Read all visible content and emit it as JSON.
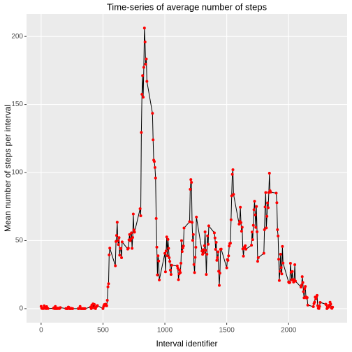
{
  "chart_data": {
    "type": "line",
    "title": "Time-series of average number of steps",
    "x_label": "Interval identifier",
    "y_label": "Mean number of steps per interval",
    "x": [
      0,
      5,
      10,
      15,
      20,
      25,
      30,
      35,
      40,
      45,
      50,
      55,
      100,
      105,
      110,
      115,
      120,
      125,
      130,
      135,
      140,
      145,
      150,
      155,
      200,
      205,
      210,
      215,
      220,
      225,
      230,
      235,
      240,
      245,
      250,
      255,
      300,
      305,
      310,
      315,
      320,
      325,
      330,
      335,
      340,
      345,
      350,
      355,
      400,
      405,
      410,
      415,
      420,
      425,
      430,
      435,
      440,
      445,
      450,
      455,
      500,
      505,
      510,
      515,
      520,
      525,
      530,
      535,
      540,
      545,
      550,
      555,
      600,
      605,
      610,
      615,
      620,
      625,
      630,
      635,
      640,
      645,
      650,
      655,
      700,
      705,
      710,
      715,
      720,
      725,
      730,
      735,
      740,
      745,
      750,
      755,
      800,
      805,
      810,
      815,
      820,
      825,
      830,
      835,
      840,
      845,
      850,
      855,
      900,
      905,
      910,
      915,
      920,
      925,
      930,
      935,
      940,
      945,
      950,
      955,
      1000,
      1005,
      1010,
      1015,
      1020,
      1025,
      1030,
      1035,
      1040,
      1045,
      1050,
      1055,
      1100,
      1105,
      1110,
      1115,
      1120,
      1125,
      1130,
      1135,
      1140,
      1145,
      1150,
      1155,
      1200,
      1205,
      1210,
      1215,
      1220,
      1225,
      1230,
      1235,
      1240,
      1245,
      1250,
      1255,
      1300,
      1305,
      1310,
      1315,
      1320,
      1325,
      1330,
      1335,
      1340,
      1345,
      1350,
      1355,
      1400,
      1405,
      1410,
      1415,
      1420,
      1425,
      1430,
      1435,
      1440,
      1445,
      1450,
      1455,
      1500,
      1505,
      1510,
      1515,
      1520,
      1525,
      1530,
      1535,
      1540,
      1545,
      1550,
      1555,
      1600,
      1605,
      1610,
      1615,
      1620,
      1625,
      1630,
      1635,
      1640,
      1645,
      1650,
      1655,
      1700,
      1705,
      1710,
      1715,
      1720,
      1725,
      1730,
      1735,
      1740,
      1745,
      1750,
      1755,
      1800,
      1805,
      1810,
      1815,
      1820,
      1825,
      1830,
      1835,
      1840,
      1845,
      1850,
      1855,
      1900,
      1905,
      1910,
      1915,
      1920,
      1925,
      1930,
      1935,
      1940,
      1945,
      1950,
      1955,
      2000,
      2005,
      2010,
      2015,
      2020,
      2025,
      2030,
      2035,
      2040,
      2045,
      2050,
      2055,
      2100,
      2105,
      2110,
      2115,
      2120,
      2125,
      2130,
      2135,
      2140,
      2145,
      2150,
      2155,
      2200,
      2205,
      2210,
      2215,
      2220,
      2225,
      2230,
      2235,
      2240,
      2245,
      2250,
      2255,
      2300,
      2305,
      2310,
      2315,
      2320,
      2325,
      2330,
      2335,
      2340,
      2345,
      2350,
      2355
    ],
    "series": [
      {
        "line_color": "#000000",
        "point_color": "#ff0000",
        "values": [
          1.7,
          0.3,
          0.1,
          0.2,
          0.1,
          2.1,
          0.5,
          0.9,
          0,
          1.5,
          0.3,
          0.1,
          0.3,
          0.7,
          0,
          1.6,
          0,
          0.2,
          0,
          0.4,
          0.2,
          0,
          0.2,
          0.8,
          0.1,
          0,
          0,
          0,
          1.2,
          0.9,
          0,
          0,
          0,
          0.2,
          0,
          0,
          0,
          0,
          0.2,
          1.6,
          0,
          0,
          0,
          0,
          0,
          0,
          0,
          0,
          1.2,
          0,
          2.6,
          0.8,
          3.5,
          0.7,
          3.1,
          1.1,
          0,
          1.3,
          1.8,
          2.3,
          0,
          1.6,
          3,
          2.3,
          3.3,
          3,
          2.1,
          6.1,
          16,
          18.3,
          39.5,
          44.5,
          31.5,
          49.3,
          53.8,
          63.5,
          50,
          47.1,
          52.2,
          39.3,
          44,
          44.2,
          37.4,
          49,
          43.8,
          44.4,
          50.5,
          54.5,
          49.9,
          51,
          55.7,
          44.3,
          52.3,
          69.5,
          57.8,
          56.2,
          73.4,
          68.2,
          129.4,
          157.5,
          171.2,
          155.4,
          177.3,
          206.2,
          195.9,
          179.6,
          183.4,
          167,
          143.5,
          124,
          109.1,
          108.1,
          103.7,
          96,
          66.2,
          45.2,
          24.8,
          38.8,
          35,
          21.1,
          40.6,
          27,
          42.4,
          52.7,
          38.9,
          50.8,
          44.3,
          37.4,
          34.7,
          28.3,
          25.1,
          31.9,
          31.4,
          29.7,
          21.3,
          25.5,
          28.4,
          26.5,
          33.4,
          50,
          42,
          44.6,
          46,
          59.2,
          63.9,
          87.7,
          94.8,
          92.8,
          63.4,
          50.2,
          54.5,
          32.4,
          26.5,
          37.7,
          45.1,
          67.3,
          42.3,
          39.9,
          43.3,
          41,
          46.2,
          56.4,
          42.8,
          25.1,
          40,
          53.5,
          47.3,
          60.8,
          55.7,
          52,
          43.6,
          48.7,
          35.5,
          37.5,
          41.8,
          27.5,
          17.1,
          26.1,
          43.6,
          43.8,
          30,
          36.1,
          35.5,
          38.8,
          46,
          47.8,
          48.1,
          65.3,
          82.9,
          98.7,
          102.1,
          84,
          62.1,
          64.1,
          74.5,
          63.2,
          56.9,
          59.8,
          43.9,
          38.6,
          44.7,
          45.5,
          46.2,
          43.7,
          46.6,
          56.3,
          50.7,
          61.2,
          72.7,
          78.9,
          68.9,
          59.7,
          75.1,
          56.5,
          34.8,
          37.5,
          40.7,
          58,
          74.7,
          85.3,
          59.3,
          67.8,
          77.7,
          74.2,
          85.3,
          99.5,
          86.6,
          85.6,
          84.9,
          77.8,
          58,
          53.4,
          36.3,
          20.7,
          27.4,
          40,
          30.2,
          25.5,
          45.7,
          33.5,
          19.6,
          19,
          19.3,
          33.3,
          26.8,
          21.2,
          27.3,
          21.3,
          19.5,
          21.3,
          32.3,
          20.2,
          15.9,
          17.2,
          23.5,
          19.2,
          12.5,
          8,
          14.7,
          16.3,
          8.7,
          7.8,
          8.1,
          2.6,
          1.5,
          3.7,
          4.8,
          8.5,
          7.1,
          8.7,
          9.8,
          2.2,
          0.3,
          0.1,
          1.6,
          4.6,
          3.3,
          2.8,
          0,
          0.8,
          1,
          1.6,
          2.6,
          4.7,
          3.3,
          0.6,
          0.2,
          1.1
        ]
      }
    ],
    "xlim": [
      -117.75,
      2472.75
    ],
    "xticks": [
      0,
      500,
      1000,
      1500,
      2000
    ],
    "ylim": [
      -10.3,
      216.5
    ],
    "yticks": [
      0,
      50,
      100,
      150,
      200
    ],
    "grid": true
  }
}
